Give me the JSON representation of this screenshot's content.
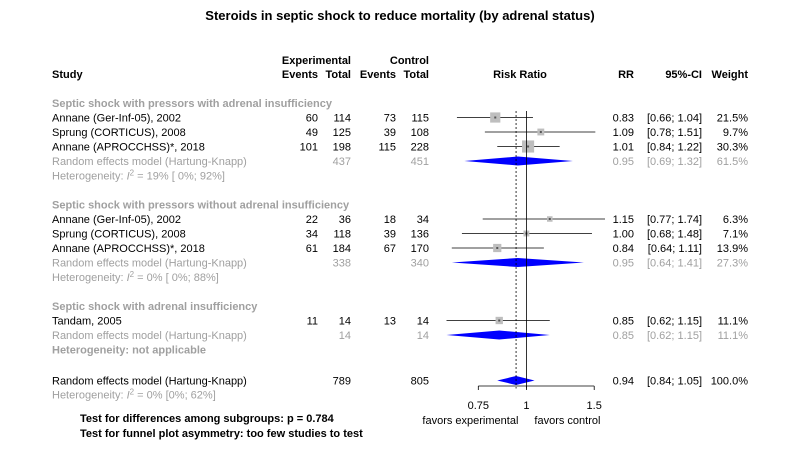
{
  "chart_data": {
    "type": "forest",
    "title": "Steroids in septic shock to reduce mortality (by adrenal status)",
    "columns": {
      "study": "Study",
      "experimental": "Experimental",
      "control": "Control",
      "events": "Events",
      "total": "Total",
      "risk_ratio": "Risk Ratio",
      "rr": "RR",
      "ci": "95%-CI",
      "weight": "Weight"
    },
    "axis": {
      "scale": "log",
      "xlim": [
        0.6,
        1.6
      ],
      "ticks": [
        {
          "value": 0.75,
          "label": "0.75"
        },
        {
          "value": 1,
          "label": "1"
        },
        {
          "value": 1.5,
          "label": "1.5"
        }
      ],
      "null_line": 1,
      "overall_line": 0.94,
      "label_left": "favors experimental",
      "label_right": "favors control"
    },
    "subgroups": [
      {
        "label": "Septic shock with pressors with adrenal insufficiency",
        "studies": [
          {
            "name": "Annane (Ger-Inf-05), 2002",
            "e_events": "60",
            "e_total": "114",
            "c_events": "73",
            "c_total": "115",
            "rr": 0.83,
            "lo": 0.66,
            "hi": 1.04,
            "rr_text": "0.83",
            "ci_text": "[0.66; 1.04]",
            "weight_text": "21.5%",
            "weight": 21.5
          },
          {
            "name": "Sprung (CORTICUS), 2008",
            "e_events": "49",
            "e_total": "125",
            "c_events": "39",
            "c_total": "108",
            "rr": 1.09,
            "lo": 0.78,
            "hi": 1.51,
            "rr_text": "1.09",
            "ci_text": "[0.78; 1.51]",
            "weight_text": "9.7%",
            "weight": 9.7
          },
          {
            "name": "Annane (APROCCHSS)*, 2018",
            "e_events": "101",
            "e_total": "198",
            "c_events": "115",
            "c_total": "228",
            "rr": 1.01,
            "lo": 0.84,
            "hi": 1.22,
            "rr_text": "1.01",
            "ci_text": "[0.84; 1.22]",
            "weight_text": "30.3%",
            "weight": 30.3
          }
        ],
        "pooled": {
          "label": "Random effects model  (Hartung-Knapp)",
          "e_total": "437",
          "c_total": "451",
          "rr": 0.95,
          "lo": 0.69,
          "hi": 1.32,
          "rr_text": "0.95",
          "ci_text": "[0.69; 1.32]",
          "weight_text": "61.5%"
        },
        "heterogeneity": {
          "prefix": "Heterogeneity: ",
          "i2": "I",
          "sup": "2",
          "suffix": " = 19% [ 0%; 92%]"
        }
      },
      {
        "label": "Septic shock with pressors without adrenal insufficiency",
        "studies": [
          {
            "name": "Annane (Ger-Inf-05), 2002",
            "e_events": "22",
            "e_total": "36",
            "c_events": "18",
            "c_total": "34",
            "rr": 1.15,
            "lo": 0.77,
            "hi": 1.74,
            "rr_text": "1.15",
            "ci_text": "[0.77; 1.74]",
            "weight_text": "6.3%",
            "weight": 6.3
          },
          {
            "name": "Sprung (CORTICUS), 2008",
            "e_events": "34",
            "e_total": "118",
            "c_events": "39",
            "c_total": "136",
            "rr": 1.0,
            "lo": 0.68,
            "hi": 1.48,
            "rr_text": "1.00",
            "ci_text": "[0.68; 1.48]",
            "weight_text": "7.1%",
            "weight": 7.1
          },
          {
            "name": "Annane (APROCCHSS)*, 2018",
            "e_events": "61",
            "e_total": "184",
            "c_events": "67",
            "c_total": "170",
            "rr": 0.84,
            "lo": 0.64,
            "hi": 1.11,
            "rr_text": "0.84",
            "ci_text": "[0.64; 1.11]",
            "weight_text": "13.9%",
            "weight": 13.9
          }
        ],
        "pooled": {
          "label": "Random effects model  (Hartung-Knapp)",
          "e_total": "338",
          "c_total": "340",
          "rr": 0.95,
          "lo": 0.64,
          "hi": 1.41,
          "rr_text": "0.95",
          "ci_text": "[0.64; 1.41]",
          "weight_text": "27.3%"
        },
        "heterogeneity": {
          "prefix": "Heterogeneity: ",
          "i2": "I",
          "sup": "2",
          "suffix": " = 0% [ 0%; 88%]"
        }
      },
      {
        "label": "Septic shock with adrenal insufficiency",
        "studies": [
          {
            "name": "Tandam, 2005",
            "e_events": "11",
            "e_total": "14",
            "c_events": "13",
            "c_total": "14",
            "rr": 0.85,
            "lo": 0.62,
            "hi": 1.15,
            "rr_text": "0.85",
            "ci_text": "[0.62; 1.15]",
            "weight_text": "11.1%",
            "weight": 11.1
          }
        ],
        "pooled": {
          "label": "Random effects model  (Hartung-Knapp)",
          "e_total": "14",
          "c_total": "14",
          "rr": 0.85,
          "lo": 0.62,
          "hi": 1.15,
          "rr_text": "0.85",
          "ci_text": "[0.62; 1.15]",
          "weight_text": "11.1%"
        },
        "heterogeneity": {
          "text": "Heterogeneity: not applicable"
        }
      }
    ],
    "overall": {
      "label": "Random effects model  (Hartung-Knapp)",
      "e_total": "789",
      "c_total": "805",
      "rr": 0.94,
      "lo": 0.84,
      "hi": 1.05,
      "rr_text": "0.94",
      "ci_text": "[0.84; 1.05]",
      "weight_text": "100.0%",
      "heterogeneity": {
        "prefix": "Heterogeneity: ",
        "i2": "I",
        "sup": "2",
        "suffix": " = 0% [0%; 62%]"
      }
    },
    "footnotes": [
      "Test for differences among subgroups: p = 0.784",
      "Test for funnel plot asymmetry: too few studies to test"
    ],
    "colors": {
      "diamond": "#0000ff",
      "square": "#bebebe",
      "subgroup_text": "#a0a0a0",
      "text": "#000000"
    }
  }
}
